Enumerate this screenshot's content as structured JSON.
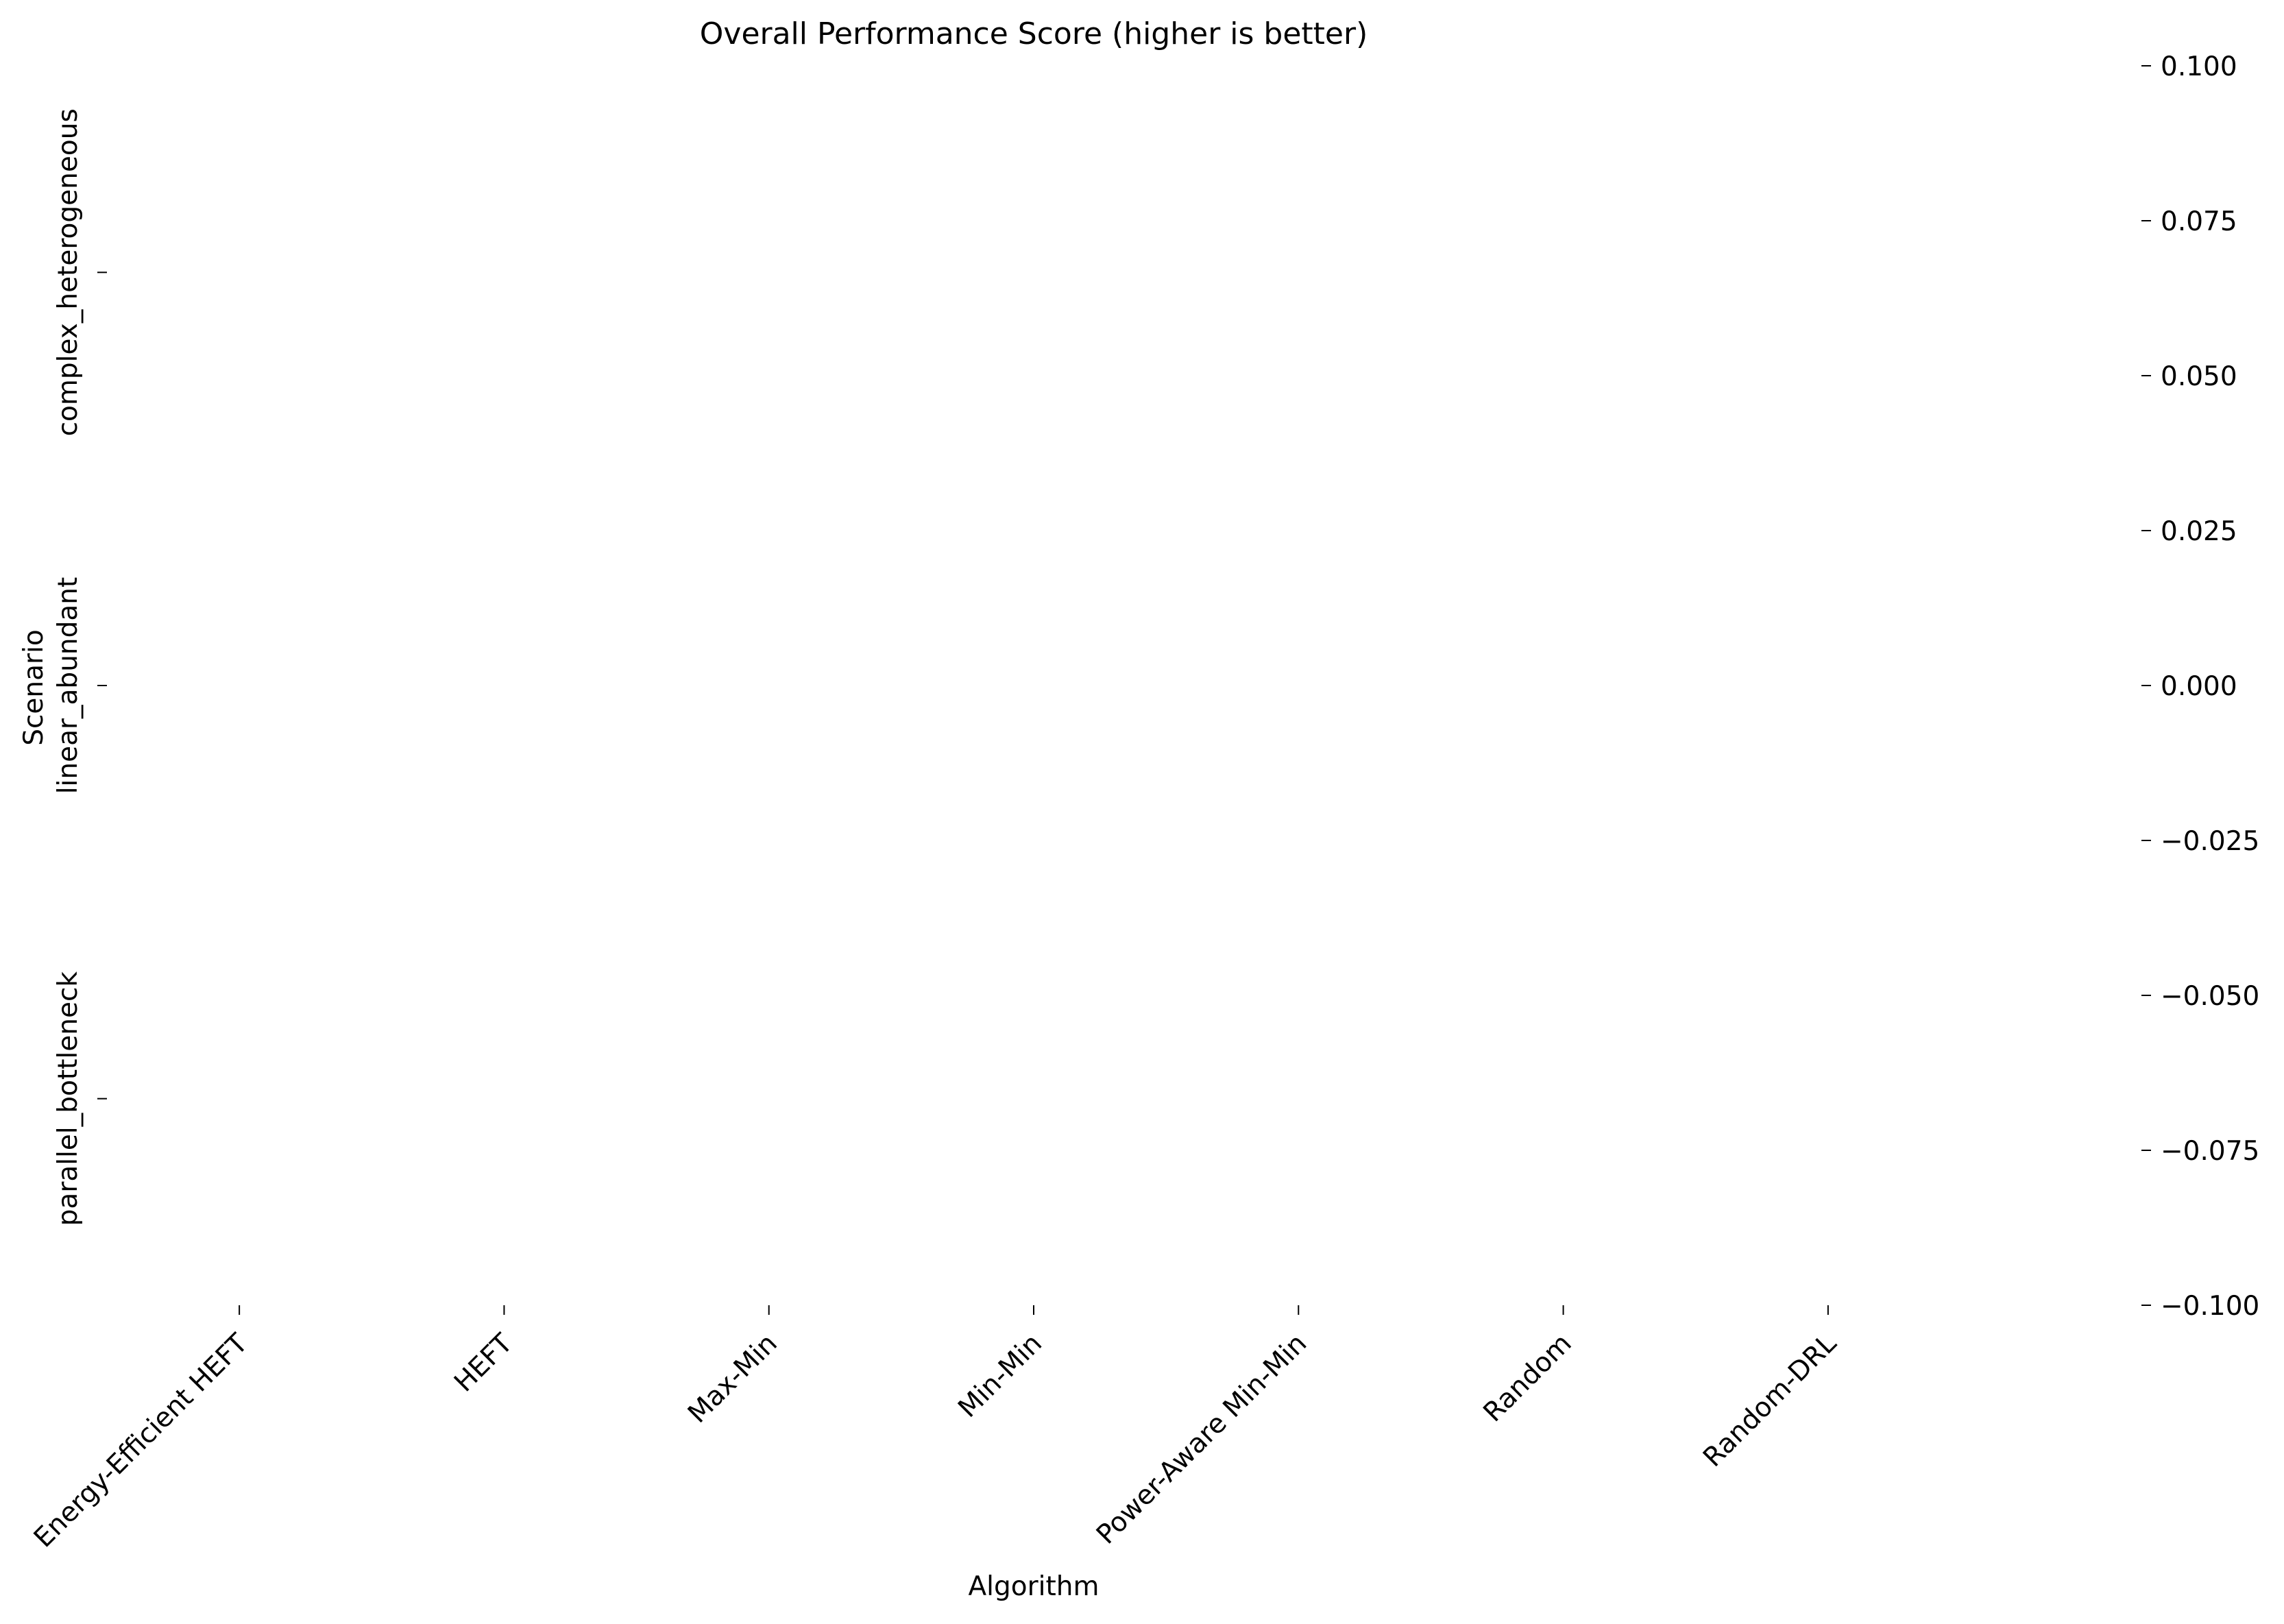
{
  "chart_data": {
    "type": "heatmap",
    "title": "Overall Performance Score (higher is better)",
    "xlabel": "Algorithm",
    "ylabel": "Scenario",
    "x_categories": [
      "Energy-Efficient HEFT",
      "HEFT",
      "Max-Min",
      "Min-Min",
      "Power-Aware Min-Min",
      "Random",
      "Random-DRL"
    ],
    "y_categories": [
      "complex_heterogeneous",
      "linear_abundant",
      "parallel_bottleneck"
    ],
    "values": [],
    "colorbar": {
      "ticks": [
        "0.100",
        "0.075",
        "0.050",
        "0.025",
        "0.000",
        "−0.025",
        "−0.050",
        "−0.075",
        "−0.100"
      ],
      "range": [
        -0.1,
        0.1
      ]
    },
    "grid": false
  }
}
